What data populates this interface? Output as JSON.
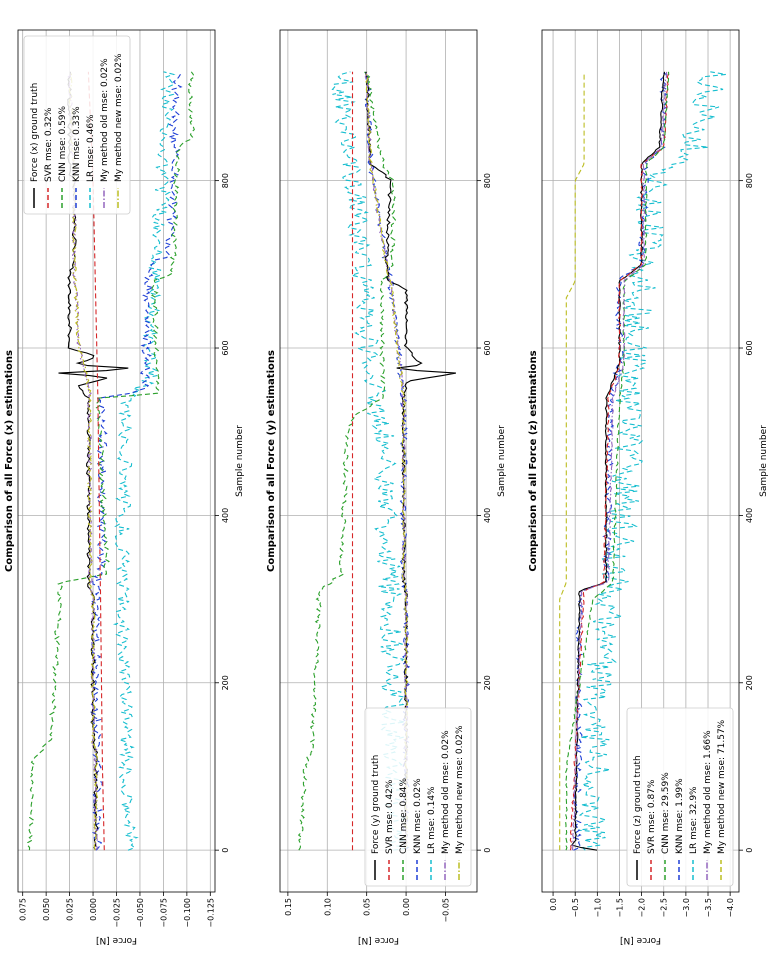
{
  "figure": {
    "rotation": "90 degrees counter-clockwise",
    "panels": 3
  },
  "chart_data": [
    {
      "type": "line",
      "title": "Comparison of all Force (x) estimations",
      "xlabel": "Sample number",
      "ylabel": "Force [N]",
      "xlim": [
        -50,
        980
      ],
      "ylim": [
        -0.13,
        0.08
      ],
      "xticks": [
        0,
        200,
        400,
        600,
        800
      ],
      "yticks": [
        0.075,
        0.05,
        0.025,
        0.0,
        -0.025,
        -0.05,
        -0.075,
        -0.1,
        -0.125
      ],
      "ytick_labels": [
        "0.075",
        "0.050",
        "0.025",
        "0.000",
        "−0.025",
        "−0.050",
        "−0.075",
        "−0.100",
        "−0.125"
      ],
      "grid": true,
      "legend_position": "top-right",
      "series": [
        {
          "name": "Force (x) ground truth",
          "color": "#000000",
          "dash": "solid",
          "noise": 0.002,
          "x": [
            0,
            120,
            125,
            300,
            320,
            540,
            555,
            565,
            570,
            575,
            580,
            590,
            600,
            690,
            700,
            800,
            810,
            840,
            845,
            930
          ],
          "y": [
            -0.003,
            -0.003,
            0.0,
            0.0,
            0.005,
            0.005,
            0.015,
            -0.02,
            0.035,
            -0.05,
            0.02,
            -0.005,
            0.025,
            0.025,
            0.02,
            0.02,
            0.025,
            0.025,
            0.025,
            0.025
          ]
        },
        {
          "name": "SVR mse: 0.32%",
          "color": "#d62728",
          "dash": "dash",
          "noise": 0.0,
          "x": [
            0,
            100,
            300,
            550,
            800,
            930
          ],
          "y": [
            -0.012,
            -0.01,
            -0.008,
            -0.005,
            0.0,
            0.005
          ]
        },
        {
          "name": "CNN mse: 0.59%",
          "color": "#2ca02c",
          "dash": "dash",
          "noise": 0.003,
          "x": [
            0,
            110,
            130,
            320,
            330,
            540,
            545,
            680,
            690,
            840,
            850,
            930
          ],
          "y": [
            0.067,
            0.065,
            0.045,
            0.035,
            -0.015,
            -0.005,
            -0.07,
            -0.065,
            -0.085,
            -0.09,
            -0.105,
            -0.105
          ]
        },
        {
          "name": "KNN mse: 0.33%",
          "color": "#1f3fd6",
          "dash": "dash",
          "noise": 0.005,
          "x": [
            0,
            120,
            130,
            320,
            330,
            540,
            550,
            700,
            710,
            840,
            850,
            930
          ],
          "y": [
            -0.005,
            -0.005,
            -0.003,
            -0.003,
            -0.008,
            -0.01,
            -0.055,
            -0.06,
            -0.08,
            -0.09,
            -0.085,
            -0.09
          ]
        },
        {
          "name": "LR mse: 0.46%",
          "color": "#17becf",
          "dash": "dash",
          "noise": 0.008,
          "x": [
            0,
            120,
            320,
            540,
            560,
            700,
            800,
            930
          ],
          "y": [
            -0.04,
            -0.035,
            -0.03,
            -0.035,
            -0.06,
            -0.065,
            -0.075,
            -0.08
          ]
        },
        {
          "name": "My method old mse: 0.02%",
          "color": "#9467bd",
          "dash": "dashdot",
          "noise": 0.002,
          "x": [
            0,
            120,
            125,
            300,
            320,
            550,
            600,
            700,
            800,
            930
          ],
          "y": [
            -0.003,
            -0.003,
            0.0,
            0.0,
            0.003,
            0.004,
            0.015,
            0.02,
            0.02,
            0.025
          ]
        },
        {
          "name": "My method new mse: 0.02%",
          "color": "#bcbd22",
          "dash": "dashdot",
          "noise": 0.002,
          "x": [
            0,
            120,
            125,
            300,
            320,
            550,
            600,
            700,
            800,
            930
          ],
          "y": [
            -0.003,
            -0.003,
            0.0,
            0.0,
            0.003,
            0.004,
            0.015,
            0.02,
            0.02,
            0.025
          ]
        }
      ]
    },
    {
      "type": "line",
      "title": "Comparison of all Force (y) estimations",
      "xlabel": "Sample number",
      "ylabel": "Force [N]",
      "xlim": [
        -50,
        980
      ],
      "ylim": [
        -0.09,
        0.16
      ],
      "xticks": [
        0,
        200,
        400,
        600,
        800
      ],
      "yticks": [
        0.15,
        0.1,
        0.05,
        0.0,
        -0.05
      ],
      "ytick_labels": [
        "0.15",
        "0.10",
        "0.05",
        "0.00",
        "−0.05"
      ],
      "grid": true,
      "legend_position": "bottom-left",
      "series": [
        {
          "name": "Force (y) ground truth",
          "color": "#000000",
          "dash": "solid",
          "noise": 0.002,
          "x": [
            0,
            310,
            320,
            540,
            560,
            570,
            575,
            580,
            600,
            670,
            680,
            700,
            800,
            810,
            820,
            930
          ],
          "y": [
            0.0,
            0.0,
            0.003,
            0.003,
            0.0,
            -0.065,
            0.02,
            -0.02,
            0.0,
            0.0,
            0.022,
            0.025,
            0.02,
            0.03,
            0.045,
            0.05
          ]
        },
        {
          "name": "SVR mse: 0.42%",
          "color": "#d62728",
          "dash": "dash",
          "noise": 0.0,
          "x": [
            0,
            930
          ],
          "y": [
            0.068,
            0.068
          ]
        },
        {
          "name": "CNN mse: 0.84%",
          "color": "#2ca02c",
          "dash": "dash",
          "noise": 0.003,
          "x": [
            0,
            100,
            120,
            310,
            330,
            500,
            520,
            540,
            680,
            700,
            800,
            820,
            930
          ],
          "y": [
            0.135,
            0.128,
            0.12,
            0.11,
            0.082,
            0.075,
            0.065,
            0.03,
            0.03,
            0.018,
            0.015,
            0.03,
            0.05
          ]
        },
        {
          "name": "KNN mse: 0.02%",
          "color": "#1f3fd6",
          "dash": "dash",
          "noise": 0.004,
          "x": [
            0,
            310,
            320,
            540,
            680,
            700,
            820,
            930
          ],
          "y": [
            0.0,
            0.0,
            0.003,
            0.003,
            0.02,
            0.025,
            0.045,
            0.05
          ]
        },
        {
          "name": "LR mse: 0.14%",
          "color": "#17becf",
          "dash": "dash",
          "noise": 0.015,
          "x": [
            0,
            100,
            300,
            500,
            600,
            700,
            800,
            900,
            930
          ],
          "y": [
            0.01,
            0.015,
            0.02,
            0.03,
            0.05,
            0.055,
            0.065,
            0.08,
            0.08
          ]
        },
        {
          "name": "My method old mse: 0.02%",
          "color": "#9467bd",
          "dash": "dashdot",
          "noise": 0.002,
          "x": [
            0,
            310,
            320,
            540,
            680,
            700,
            820,
            930
          ],
          "y": [
            0.0,
            0.0,
            0.003,
            0.003,
            0.02,
            0.025,
            0.045,
            0.05
          ]
        },
        {
          "name": "My method new mse: 0.02%",
          "color": "#bcbd22",
          "dash": "dashdot",
          "noise": 0.002,
          "x": [
            0,
            310,
            320,
            540,
            680,
            700,
            820,
            930
          ],
          "y": [
            0.0,
            0.0,
            0.003,
            0.003,
            0.02,
            0.025,
            0.045,
            0.05
          ]
        }
      ]
    },
    {
      "type": "line",
      "title": "Comparison of all Force (z) estimations",
      "xlabel": "Sample number",
      "ylabel": "Force [N]",
      "xlim": [
        -50,
        980
      ],
      "ylim": [
        -4.2,
        0.25
      ],
      "xticks": [
        0,
        200,
        400,
        600,
        800
      ],
      "yticks": [
        0.0,
        -0.5,
        -1.0,
        -1.5,
        -2.0,
        -2.5,
        -3.0,
        -3.5,
        -4.0
      ],
      "ytick_labels": [
        "0.0",
        "−0.5",
        "−1.0",
        "−1.5",
        "−2.0",
        "−2.5",
        "−3.0",
        "−3.5",
        "−4.0"
      ],
      "grid": true,
      "legend_position": "bottom-left",
      "series": [
        {
          "name": "Force (z) ground truth",
          "color": "#000000",
          "dash": "solid",
          "noise": 0.02,
          "x": [
            0,
            5,
            10,
            310,
            320,
            540,
            580,
            680,
            700,
            820,
            840,
            930
          ],
          "y": [
            -1.0,
            -0.4,
            -0.5,
            -0.6,
            -1.2,
            -1.2,
            -1.5,
            -1.5,
            -2.0,
            -2.0,
            -2.4,
            -2.5
          ]
        },
        {
          "name": "SVR mse: 0.87%",
          "color": "#d62728",
          "dash": "dash",
          "noise": 0.02,
          "x": [
            0,
            10,
            310,
            320,
            540,
            580,
            680,
            700,
            820,
            840,
            930
          ],
          "y": [
            -0.4,
            -0.4,
            -0.7,
            -1.15,
            -1.25,
            -1.5,
            -1.5,
            -2.0,
            -2.0,
            -2.5,
            -2.6
          ]
        },
        {
          "name": "CNN mse: 29.59%",
          "color": "#2ca02c",
          "dash": "dash",
          "noise": 0.02,
          "x": [
            0,
            100,
            300,
            320,
            540,
            580,
            680,
            700,
            820,
            840,
            930
          ],
          "y": [
            -0.3,
            -0.3,
            -0.9,
            -1.35,
            -1.5,
            -1.6,
            -1.6,
            -2.1,
            -2.1,
            -2.5,
            -2.6
          ]
        },
        {
          "name": "KNN mse: 1.99%",
          "color": "#1f3fd6",
          "dash": "dash",
          "noise": 0.08,
          "x": [
            0,
            10,
            310,
            320,
            540,
            580,
            680,
            700,
            820,
            840,
            930
          ],
          "y": [
            -0.5,
            -0.55,
            -0.6,
            -1.2,
            -1.3,
            -1.5,
            -1.5,
            -2.0,
            -2.1,
            -2.5,
            -2.5
          ]
        },
        {
          "name": "LR mse: 32.9%",
          "color": "#17becf",
          "dash": "dash",
          "noise": 0.35,
          "x": [
            0,
            200,
            400,
            600,
            800,
            840,
            930
          ],
          "y": [
            -0.9,
            -1.0,
            -1.6,
            -1.8,
            -2.3,
            -3.2,
            -3.6
          ]
        },
        {
          "name": "My method old mse: 1.66%",
          "color": "#9467bd",
          "dash": "dashdot",
          "noise": 0.02,
          "x": [
            0,
            10,
            310,
            320,
            540,
            580,
            680,
            700,
            820,
            840,
            930
          ],
          "y": [
            -0.45,
            -0.45,
            -0.65,
            -1.25,
            -1.35,
            -1.6,
            -1.6,
            -2.05,
            -2.05,
            -2.45,
            -2.55
          ]
        },
        {
          "name": "My method new mse: 71.57%",
          "color": "#bcbd22",
          "dash": "dash",
          "noise": 0.0,
          "x": [
            0,
            300,
            320,
            660,
            680,
            800,
            820,
            930
          ],
          "y": [
            -0.15,
            -0.15,
            -0.3,
            -0.3,
            -0.5,
            -0.5,
            -0.7,
            -0.7
          ]
        }
      ]
    }
  ]
}
